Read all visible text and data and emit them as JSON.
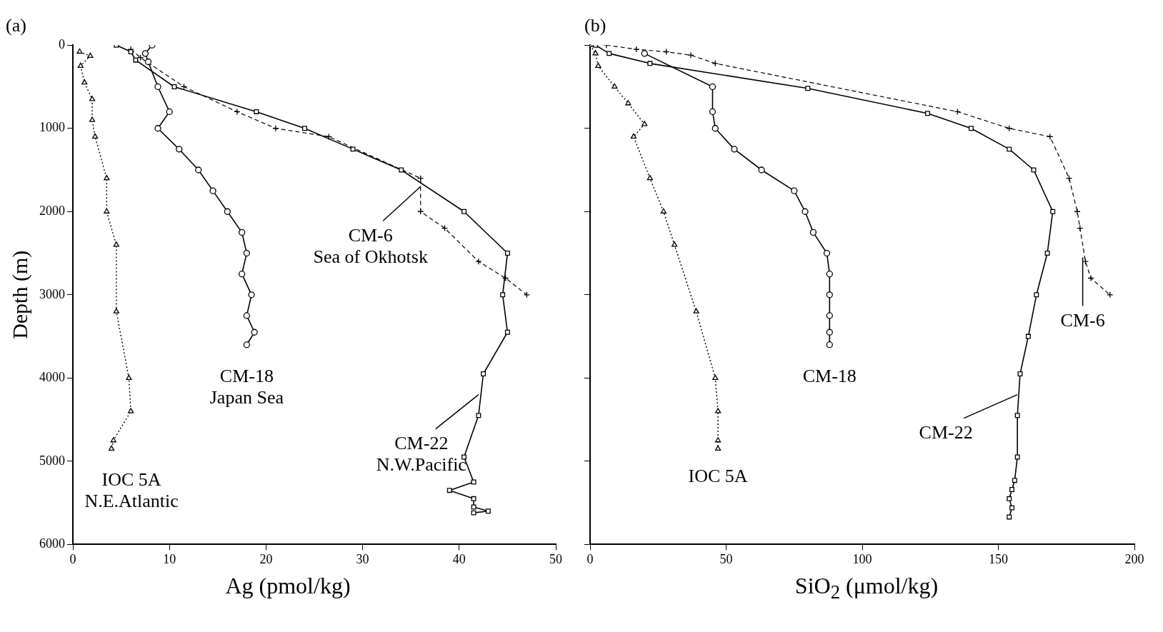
{
  "chart_data": [
    {
      "type": "line",
      "title": "(a)",
      "xlabel": "Ag (pmol/kg)",
      "ylabel": "Depth (m)",
      "xlim": [
        0,
        50
      ],
      "xticks": [
        0,
        10,
        20,
        30,
        40,
        50
      ],
      "ylim": [
        6000,
        0
      ],
      "yticks": [
        0,
        1000,
        2000,
        3000,
        4000,
        5000,
        6000
      ],
      "grid": false,
      "legend": false,
      "series": [
        {
          "color": "#000000",
          "marker": "triangle",
          "line_style": "dotted",
          "x": [
            0.7,
            1.8,
            0.8,
            1.2,
            2,
            2,
            2.3,
            3.5,
            3.5,
            4.5,
            4.5,
            5.8,
            6,
            4.2,
            4
          ],
          "values": [
            80,
            130,
            250,
            450,
            650,
            900,
            1100,
            1600,
            2000,
            2400,
            3200,
            4000,
            4400,
            4750,
            4850
          ]
        },
        {
          "color": "#000000",
          "marker": "circle",
          "line_style": "solid",
          "x": [
            8.2,
            7.5,
            7.8,
            8.8,
            10,
            8.8,
            11,
            13,
            14.5,
            16,
            17.5,
            18,
            17.5,
            18.5,
            18,
            18.8,
            18
          ],
          "values": [
            0,
            100,
            200,
            500,
            800,
            1000,
            1250,
            1500,
            1750,
            2000,
            2250,
            2500,
            2750,
            3000,
            3250,
            3450,
            3600
          ]
        },
        {
          "color": "#000000",
          "marker": "square",
          "line_style": "solid",
          "x": [
            4.5,
            6,
            6.5,
            10.5,
            19,
            24,
            29,
            34,
            40.5,
            45,
            44.5,
            45,
            42.5,
            42,
            40.5,
            41.5,
            39,
            41.5,
            41.5,
            43,
            41.5
          ],
          "values": [
            0,
            80,
            180,
            500,
            800,
            1000,
            1250,
            1500,
            2000,
            2500,
            3000,
            3450,
            3950,
            4450,
            4950,
            5250,
            5350,
            5450,
            5550,
            5600,
            5620
          ]
        },
        {
          "color": "#000000",
          "marker": "cross",
          "line_style": "dashed",
          "x": [
            6,
            7,
            11.5,
            17,
            21,
            26.5,
            36,
            36,
            38.5,
            42,
            44.8,
            47
          ],
          "values": [
            50,
            150,
            500,
            800,
            1000,
            1100,
            1600,
            2000,
            2200,
            2600,
            2800,
            3000
          ]
        }
      ],
      "annotations": [
        {
          "text": "IOC 5A\nN.E.Atlantic",
          "x": 4,
          "y": 4850
        },
        {
          "text": "CM-18\nJapan Sea",
          "x": 18,
          "y": 3600
        },
        {
          "text": "CM-6\nSea of Okhotsk",
          "x": 36,
          "y": 1700
        },
        {
          "text": "CM-22\nN.W.Pacific",
          "x": 42,
          "y": 4200
        }
      ]
    },
    {
      "type": "line",
      "title": "(b)",
      "xlabel": "SiO$_{2}$ (μmol/kg)",
      "xlim": [
        0,
        200
      ],
      "xticks": [
        0,
        50,
        100,
        150,
        200
      ],
      "ylim": [
        6000,
        0
      ],
      "yticks": [
        0,
        1000,
        2000,
        3000,
        4000,
        5000,
        6000
      ],
      "tick_labels": "x",
      "grid": false,
      "legend": false,
      "series": [
        {
          "color": "#000000",
          "marker": "triangle",
          "line_style": "dotted",
          "x": [
            0,
            2,
            3,
            9,
            14,
            20,
            16,
            22,
            27,
            31,
            39,
            46,
            47,
            47,
            47
          ],
          "values": [
            0,
            100,
            250,
            500,
            700,
            950,
            1100,
            1600,
            2000,
            2400,
            3200,
            4000,
            4400,
            4750,
            4850
          ]
        },
        {
          "color": "#000000",
          "marker": "circle",
          "line_style": "solid",
          "x": [
            20,
            45,
            45,
            46,
            53,
            63,
            75,
            79,
            82,
            87,
            88,
            88,
            88,
            88,
            88
          ],
          "values": [
            100,
            500,
            800,
            1000,
            1250,
            1500,
            1750,
            2000,
            2250,
            2500,
            2750,
            3000,
            3250,
            3450,
            3600
          ]
        },
        {
          "color": "#000000",
          "marker": "square",
          "line_style": "solid",
          "x": [
            2,
            7,
            22,
            80,
            124,
            140,
            154,
            163,
            170,
            168,
            164,
            161,
            158,
            157,
            157,
            156,
            155,
            154,
            155,
            154
          ],
          "values": [
            0,
            100,
            220,
            520,
            820,
            1000,
            1250,
            1500,
            2000,
            2500,
            3000,
            3500,
            3950,
            4450,
            4950,
            5230,
            5340,
            5450,
            5560,
            5670
          ]
        },
        {
          "color": "#000000",
          "marker": "cross",
          "line_style": "dashed",
          "x": [
            6,
            17,
            28,
            37,
            46,
            135,
            154,
            169,
            176,
            179,
            180,
            182,
            184,
            191
          ],
          "values": [
            0,
            50,
            80,
            120,
            220,
            800,
            1000,
            1100,
            1600,
            2000,
            2200,
            2600,
            2800,
            3000
          ]
        }
      ],
      "annotations": [
        {
          "text": "IOC 5A",
          "x": 47,
          "y": 4850
        },
        {
          "text": "CM-18",
          "x": 88,
          "y": 3600
        },
        {
          "text": "CM-6",
          "x": 181,
          "y": 2550
        },
        {
          "text": "CM-22",
          "x": 157,
          "y": 4200
        }
      ]
    }
  ]
}
